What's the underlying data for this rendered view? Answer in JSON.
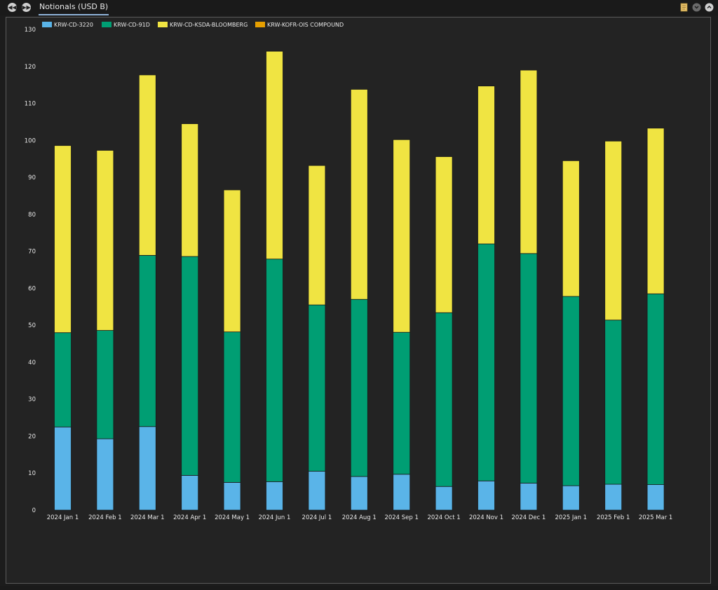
{
  "window": {
    "tab_title": "Notionals (USD B)",
    "nav_prev_icon": "rewind-icon",
    "nav_next_icon": "fast-forward-icon",
    "tools": [
      "note-icon",
      "collapse-icon",
      "expand-icon"
    ]
  },
  "colors": {
    "KRW-CD-3220": "#5ab4e8",
    "KRW-CD-91D": "#009e73",
    "KRW-CD-KSDA-BLOOMBERG": "#f0e442",
    "KRW-KOFR-OIS COMPOUND": "#e69f00",
    "background": "#232323",
    "axis_text": "#e8e8e8"
  },
  "chart_data": {
    "type": "bar",
    "stacked": true,
    "title": "",
    "xlabel": "",
    "ylabel": "",
    "ylim": [
      0,
      130
    ],
    "yticks": [
      0,
      10,
      20,
      30,
      40,
      50,
      60,
      70,
      80,
      90,
      100,
      110,
      120,
      130
    ],
    "grid": false,
    "legend_position": "top-left",
    "categories": [
      "2024 Jan 1",
      "2024 Feb 1",
      "2024 Mar 1",
      "2024 Apr 1",
      "2024 May 1",
      "2024 Jun 1",
      "2024 Jul 1",
      "2024 Aug 1",
      "2024 Sep 1",
      "2024 Oct 1",
      "2024 Nov 1",
      "2024 Dec 1",
      "2025 Jan 1",
      "2025 Feb 1",
      "2025 Mar 1"
    ],
    "series": [
      {
        "name": "KRW-CD-3220",
        "values": [
          22.5,
          19.3,
          22.6,
          9.4,
          7.5,
          7.7,
          10.5,
          9.1,
          9.7,
          6.4,
          7.9,
          7.3,
          6.6,
          7.0,
          6.9
        ]
      },
      {
        "name": "KRW-CD-91D",
        "values": [
          25.5,
          29.3,
          46.3,
          59.2,
          40.7,
          60.2,
          45.0,
          47.9,
          38.4,
          47.0,
          64.1,
          62.1,
          51.2,
          44.4,
          51.6
        ]
      },
      {
        "name": "KRW-CD-KSDA-BLOOMBERG",
        "values": [
          50.6,
          48.7,
          48.8,
          35.9,
          38.4,
          56.2,
          37.7,
          56.8,
          52.1,
          42.2,
          42.7,
          49.6,
          36.7,
          48.4,
          44.8
        ]
      },
      {
        "name": "KRW-KOFR-OIS COMPOUND",
        "values": [
          0,
          0,
          0,
          0,
          0,
          0,
          0,
          0,
          0,
          0,
          0,
          0,
          0,
          0,
          0
        ]
      }
    ]
  }
}
